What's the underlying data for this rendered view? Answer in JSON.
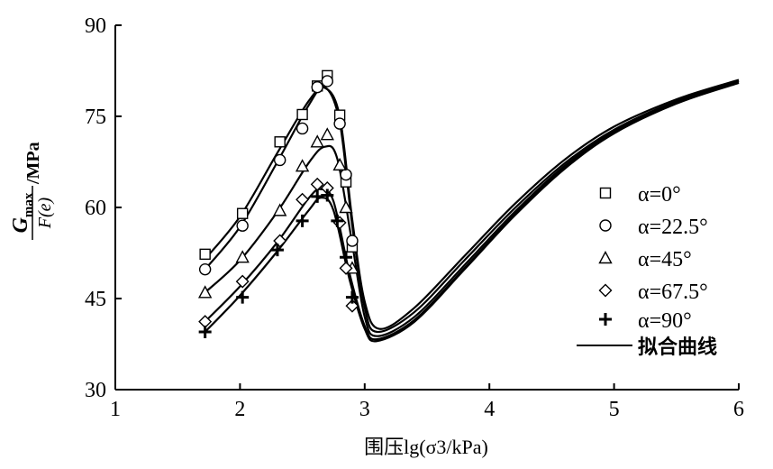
{
  "chart_data": {
    "type": "scatter",
    "xlabel": "围压lg(σ3/kPa)",
    "ylabel": {
      "numerator": "G",
      "numerator_sub": "max",
      "denominator": "F(e)",
      "unit": "/MPa"
    },
    "xlim": [
      1,
      6
    ],
    "ylim": [
      30,
      90
    ],
    "x_ticks": [
      "1",
      "2",
      "3",
      "4",
      "5",
      "6"
    ],
    "y_ticks": [
      "30",
      "45",
      "60",
      "75",
      "90"
    ],
    "grid": false,
    "legend_position": "right",
    "series": [
      {
        "name": "α=0°",
        "marker": "square",
        "x": [
          1.72,
          2.02,
          2.32,
          2.5,
          2.62,
          2.7,
          2.8,
          2.85,
          2.9
        ],
        "y": [
          52.3,
          59.0,
          70.8,
          75.3,
          80.0,
          81.7,
          75.2,
          64.2,
          53.5
        ],
        "fit": {
          "x": [
            1.72,
            2.0,
            2.3,
            2.55,
            2.68,
            2.8,
            2.9,
            3.0,
            3.12,
            3.4,
            3.8,
            4.2,
            4.6,
            5.0,
            5.5,
            6.0
          ],
          "y": [
            51.5,
            58.5,
            69.0,
            77.5,
            79.7,
            75.0,
            58.0,
            44.5,
            40.0,
            43.5,
            52.0,
            60.5,
            67.8,
            73.3,
            77.8,
            81.0
          ]
        }
      },
      {
        "name": "α=22.5°",
        "marker": "circle",
        "x": [
          1.72,
          2.02,
          2.32,
          2.5,
          2.62,
          2.7,
          2.8,
          2.85,
          2.9
        ],
        "y": [
          49.8,
          57.0,
          67.8,
          73.0,
          79.8,
          80.8,
          73.8,
          65.4,
          54.5
        ],
        "fit": {
          "x": [
            1.72,
            2.0,
            2.3,
            2.55,
            2.68,
            2.8,
            2.9,
            3.0,
            3.1,
            3.4,
            3.8,
            4.2,
            4.6,
            5.0,
            5.5,
            6.0
          ],
          "y": [
            49.8,
            56.8,
            67.5,
            76.8,
            79.8,
            74.0,
            57.0,
            43.5,
            39.5,
            42.8,
            51.3,
            59.8,
            67.2,
            72.8,
            77.5,
            80.8
          ]
        }
      },
      {
        "name": "α=45°",
        "marker": "triangle",
        "x": [
          1.72,
          2.02,
          2.32,
          2.5,
          2.62,
          2.7,
          2.8,
          2.85,
          2.9
        ],
        "y": [
          46.0,
          51.8,
          59.5,
          66.8,
          70.8,
          72.0,
          67.0,
          60.0,
          50.0
        ],
        "fit": {
          "x": [
            1.72,
            2.0,
            2.3,
            2.55,
            2.68,
            2.78,
            2.9,
            3.0,
            3.1,
            3.4,
            3.8,
            4.2,
            4.6,
            5.0,
            5.5,
            6.0
          ],
          "y": [
            46.0,
            51.3,
            59.3,
            67.3,
            70.0,
            68.0,
            54.0,
            42.0,
            38.8,
            42.0,
            50.5,
            59.2,
            66.8,
            72.5,
            77.3,
            80.8
          ]
        }
      },
      {
        "name": "α=67.5°",
        "marker": "diamond",
        "x": [
          1.72,
          2.02,
          2.32,
          2.5,
          2.62,
          2.7,
          2.8,
          2.85,
          2.9
        ],
        "y": [
          41.2,
          47.8,
          54.5,
          61.3,
          63.8,
          63.2,
          57.5,
          50.0,
          43.8
        ],
        "fit": {
          "x": [
            1.72,
            2.0,
            2.3,
            2.55,
            2.65,
            2.75,
            2.88,
            3.0,
            3.1,
            3.4,
            3.8,
            4.2,
            4.6,
            5.0,
            5.5,
            6.0
          ],
          "y": [
            41.2,
            47.0,
            54.3,
            61.5,
            63.0,
            61.0,
            49.0,
            40.5,
            38.3,
            41.5,
            50.0,
            58.8,
            66.5,
            72.3,
            77.2,
            80.6
          ]
        }
      },
      {
        "name": "α=90°",
        "marker": "plus",
        "x": [
          1.72,
          2.02,
          2.3,
          2.5,
          2.62,
          2.7,
          2.78,
          2.85,
          2.9
        ],
        "y": [
          39.5,
          45.2,
          53.0,
          57.8,
          61.8,
          62.0,
          57.8,
          51.8,
          45.2
        ],
        "fit": {
          "x": [
            1.72,
            2.0,
            2.3,
            2.55,
            2.65,
            2.75,
            2.88,
            3.0,
            3.1,
            3.4,
            3.8,
            4.2,
            4.6,
            5.0,
            5.5,
            6.0
          ],
          "y": [
            39.5,
            45.5,
            52.8,
            59.5,
            61.6,
            59.5,
            48.0,
            40.0,
            38.0,
            41.2,
            49.8,
            58.6,
            66.3,
            72.2,
            77.1,
            80.5
          ]
        }
      }
    ],
    "legend_fit_label": "拟合曲线"
  }
}
